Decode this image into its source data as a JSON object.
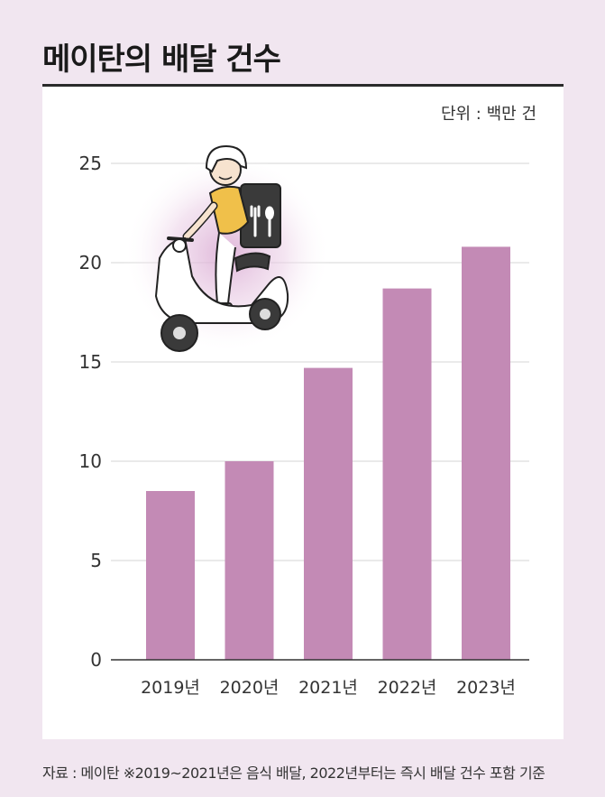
{
  "title": "메이탄의 배달 건수",
  "unit_label": "단위 : 백만 건",
  "source_note": "자료 : 메이탄 ※2019~2021년은 음식 배달, 2022년부터는 즉시 배달 건수 포함 기준",
  "chart_data": {
    "type": "bar",
    "title": "메이탄의 배달 건수",
    "unit": "단위 : 백만 건",
    "categories": [
      "2019년",
      "2020년",
      "2021년",
      "2022년",
      "2023년"
    ],
    "values": [
      8.5,
      10.0,
      14.7,
      18.7,
      20.8
    ],
    "ylim": [
      0,
      25
    ],
    "yticks": [
      0,
      5,
      10,
      15,
      20,
      25
    ],
    "grid": true,
    "bar_color": "#c38ab5"
  },
  "illustration": {
    "description_icon": "delivery-scooter-rider-icon",
    "bag_icon": "utensils-icon"
  }
}
